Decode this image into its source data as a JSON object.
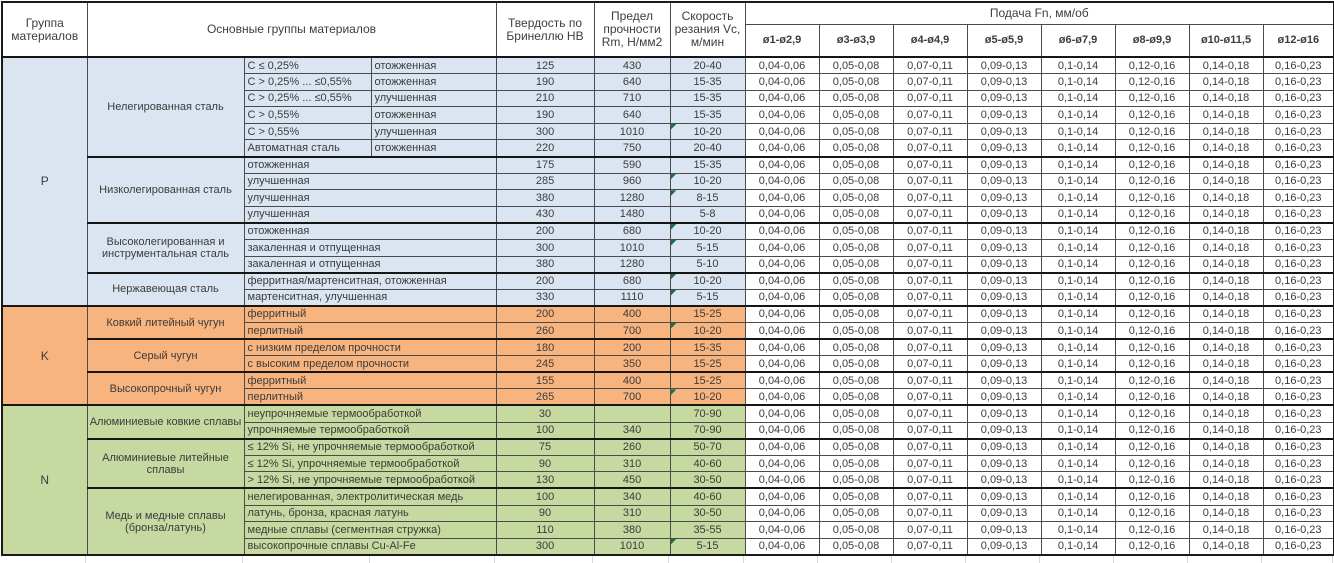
{
  "header": {
    "col_group": "Группа материалов",
    "col_main": "Основные группы материалов",
    "col_hb": "Твердость по Бринеллю HB",
    "col_rm": "Предел прочности Rm, Н/мм2",
    "col_vc": "Скорость резания Vc, м/мин",
    "feed_title": "Подача Fn, мм/об",
    "feed_cols": [
      "ø1-ø2,9",
      "ø3-ø3,9",
      "ø4-ø4,9",
      "ø5-ø5,9",
      "ø6-ø7,9",
      "ø8-ø9,9",
      "ø10-ø11,5",
      "ø12-ø16"
    ]
  },
  "feed_values": [
    "0,04-0,06",
    "0,05-0,08",
    "0,07-0,11",
    "0,09-0,13",
    "0,1-0,14",
    "0,12-0,16",
    "0,14-0,18",
    "0,16-0,23"
  ],
  "colors": {
    "group_p_fill": "#dbe5f1",
    "group_k_fill": "#f8b47f",
    "group_n_fill": "#c6d9a0",
    "comment_marker": "#1e7145"
  },
  "groups": [
    {
      "letter": "P",
      "class": "gp",
      "subgroups": [
        {
          "name": "Нелегированная сталь",
          "rows": [
            {
              "c1": "C ≤ 0,25%",
              "c2": "отожженная",
              "hb": "125",
              "rm": "430",
              "vc": "20-40",
              "marker": false
            },
            {
              "c1": "C > 0,25% ... ≤0,55%",
              "c2": "отожженная",
              "hb": "190",
              "rm": "640",
              "vc": "15-35",
              "marker": false
            },
            {
              "c1": "C > 0,25% ... ≤0,55%",
              "c2": "улучшенная",
              "hb": "210",
              "rm": "710",
              "vc": "15-35",
              "marker": false
            },
            {
              "c1": "C > 0,55%",
              "c2": "отожженная",
              "hb": "190",
              "rm": "640",
              "vc": "15-35",
              "marker": false
            },
            {
              "c1": "C > 0,55%",
              "c2": "улучшенная",
              "hb": "300",
              "rm": "1010",
              "vc": "10-20",
              "marker": true
            },
            {
              "c1": "Автоматная сталь",
              "c2": "отожженная",
              "hb": "220",
              "rm": "750",
              "vc": "20-40",
              "marker": false
            }
          ]
        },
        {
          "name": "Низколегированная сталь",
          "rows": [
            {
              "desc": "отожженная",
              "hb": "175",
              "rm": "590",
              "vc": "15-35",
              "marker": false
            },
            {
              "desc": "улучшенная",
              "hb": "285",
              "rm": "960",
              "vc": "10-20",
              "marker": true
            },
            {
              "desc": "улучшенная",
              "hb": "380",
              "rm": "1280",
              "vc": "8-15",
              "marker": true
            },
            {
              "desc": "улучшенная",
              "hb": "430",
              "rm": "1480",
              "vc": "5-8",
              "marker": false
            }
          ]
        },
        {
          "name": "Высоколегированная и инструментальная сталь",
          "rows": [
            {
              "desc": "отожженная",
              "hb": "200",
              "rm": "680",
              "vc": "10-20",
              "marker": true
            },
            {
              "desc": "закаленная и отпущенная",
              "hb": "300",
              "rm": "1010",
              "vc": "5-15",
              "marker": true
            },
            {
              "desc": "закаленная и отпущенная",
              "hb": "380",
              "rm": "1280",
              "vc": "5-10",
              "marker": false
            }
          ]
        },
        {
          "name": "Нержавеющая сталь",
          "rows": [
            {
              "desc": "ферритная/мартенситная, отожженная",
              "hb": "200",
              "rm": "680",
              "vc": "10-20",
              "marker": true
            },
            {
              "desc": "мартенситная, улучшенная",
              "hb": "330",
              "rm": "1110",
              "vc": "5-15",
              "marker": true
            }
          ]
        }
      ]
    },
    {
      "letter": "K",
      "class": "gk",
      "subgroups": [
        {
          "name": "Ковкий литейный чугун",
          "rows": [
            {
              "desc": "ферритный",
              "hb": "200",
              "rm": "400",
              "vc": "15-25",
              "marker": false
            },
            {
              "desc": "перлитный",
              "hb": "260",
              "rm": "700",
              "vc": "10-20",
              "marker": true
            }
          ]
        },
        {
          "name": "Серый чугун",
          "rows": [
            {
              "desc": "с низким пределом прочности",
              "hb": "180",
              "rm": "200",
              "vc": "15-35",
              "marker": false
            },
            {
              "desc": "с высоким пределом прочности",
              "hb": "245",
              "rm": "350",
              "vc": "15-25",
              "marker": false
            }
          ]
        },
        {
          "name": "Высокопрочный чугун",
          "rows": [
            {
              "desc": "ферритный",
              "hb": "155",
              "rm": "400",
              "vc": "15-25",
              "marker": false
            },
            {
              "desc": "перлитный",
              "hb": "265",
              "rm": "700",
              "vc": "10-20",
              "marker": true
            }
          ]
        }
      ]
    },
    {
      "letter": "N",
      "class": "gn",
      "subgroups": [
        {
          "name": "Алюминиевые ковкие сплавы",
          "rows": [
            {
              "desc": "неупрочняемые термообработкой",
              "hb": "30",
              "rm": "",
              "vc": "70-90",
              "marker": false
            },
            {
              "desc": "упрочняемые термообработкой",
              "hb": "100",
              "rm": "340",
              "vc": "70-90",
              "marker": false
            }
          ]
        },
        {
          "name": "Алюминиевые литейные сплавы",
          "rows": [
            {
              "desc": "≤ 12% Si, не упрочняемые термообработкой",
              "hb": "75",
              "rm": "260",
              "vc": "50-70",
              "marker": false
            },
            {
              "desc": "≤ 12% Si, упрочняемые термообработкой",
              "hb": "90",
              "rm": "310",
              "vc": "40-60",
              "marker": false
            },
            {
              "desc": "> 12% Si, не упрочняемые термообработкой",
              "hb": "130",
              "rm": "450",
              "vc": "30-50",
              "marker": false
            }
          ]
        },
        {
          "name": "Медь и медные сплавы (бронза/латунь)",
          "rows": [
            {
              "desc": "нелегированная, электролитическая медь",
              "hb": "100",
              "rm": "340",
              "vc": "40-60",
              "marker": false
            },
            {
              "desc": "латунь, бронза, красная латунь",
              "hb": "90",
              "rm": "310",
              "vc": "30-50",
              "marker": false
            },
            {
              "desc": "медные сплавы (сегментная стружка)",
              "hb": "110",
              "rm": "380",
              "vc": "35-55",
              "marker": false
            },
            {
              "desc": "высокопрочные сплавы Cu-Al-Fe",
              "hb": "300",
              "rm": "1010",
              "vc": "5-15",
              "marker": true
            }
          ]
        }
      ]
    }
  ]
}
